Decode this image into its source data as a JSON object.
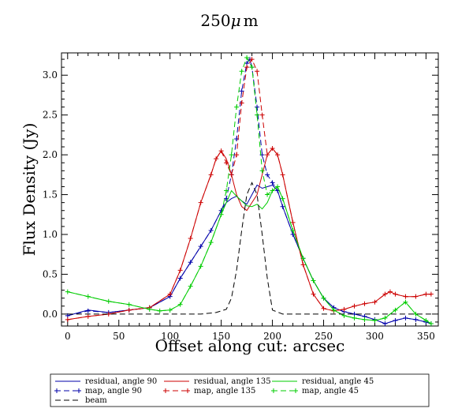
{
  "chart_data": {
    "type": "line",
    "title_number": "250",
    "title_mu": "μ",
    "title_unit": "m",
    "xlabel": "Offset along cut: arcsec",
    "ylabel": "Flux Density (Jy)",
    "xlim": [
      -6,
      362
    ],
    "ylim": [
      -0.15,
      3.28
    ],
    "xticks": [
      0,
      50,
      100,
      150,
      200,
      250,
      300,
      350
    ],
    "yticks": [
      0.0,
      0.5,
      1.0,
      1.5,
      2.0,
      2.5,
      3.0
    ],
    "ytick_labels": [
      "0.0",
      "0.5",
      "1.0",
      "1.5",
      "2.0",
      "2.5",
      "3.0"
    ],
    "legend_position": "bottom",
    "series": [
      {
        "name": "residual, angle 90",
        "style": "solid",
        "color": "#0000aa",
        "markers": false,
        "x": [
          0,
          20,
          40,
          60,
          80,
          100,
          110,
          120,
          130,
          140,
          150,
          155,
          160,
          165,
          170,
          175,
          180,
          185,
          190,
          195,
          200,
          205,
          210,
          220,
          230,
          240,
          250,
          260,
          270,
          280,
          290,
          300,
          310,
          320,
          330,
          340,
          350,
          355
        ],
        "y": [
          -0.02,
          0.05,
          0.02,
          0.05,
          0.08,
          0.22,
          0.45,
          0.65,
          0.85,
          1.05,
          1.3,
          1.4,
          1.45,
          1.48,
          1.42,
          1.38,
          1.5,
          1.62,
          1.58,
          1.6,
          1.62,
          1.55,
          1.35,
          1.0,
          0.7,
          0.42,
          0.2,
          0.08,
          0.03,
          0.0,
          -0.03,
          -0.07,
          -0.12,
          -0.08,
          -0.05,
          -0.07,
          -0.1,
          -0.12
        ]
      },
      {
        "name": "map, angle 90",
        "style": "dashed",
        "color": "#0000aa",
        "markers": true,
        "x": [
          0,
          20,
          40,
          60,
          80,
          100,
          110,
          120,
          130,
          140,
          150,
          155,
          160,
          165,
          170,
          175,
          178,
          180,
          185,
          190,
          195,
          200,
          205,
          210,
          220,
          230,
          240,
          250,
          260,
          270,
          280,
          290,
          300,
          310,
          320,
          330,
          340,
          350,
          355
        ],
        "y": [
          -0.02,
          0.04,
          0.02,
          0.05,
          0.08,
          0.22,
          0.45,
          0.65,
          0.85,
          1.05,
          1.3,
          1.45,
          1.75,
          2.2,
          2.8,
          3.15,
          3.2,
          3.1,
          2.6,
          2.0,
          1.75,
          1.65,
          1.55,
          1.35,
          1.0,
          0.7,
          0.42,
          0.2,
          0.08,
          0.03,
          0.0,
          -0.03,
          -0.07,
          -0.12,
          -0.08,
          -0.05,
          -0.07,
          -0.1,
          -0.12
        ]
      },
      {
        "name": "residual, angle 135",
        "style": "solid",
        "color": "#cc0000",
        "markers": false,
        "x": [
          0,
          20,
          40,
          60,
          80,
          100,
          110,
          120,
          130,
          140,
          145,
          150,
          155,
          160,
          165,
          170,
          175,
          180,
          185,
          190,
          195,
          200,
          205,
          210,
          220,
          230,
          240,
          250,
          260,
          270,
          280,
          290,
          300,
          310,
          315,
          320,
          330,
          340,
          350,
          355
        ],
        "y": [
          -0.07,
          -0.03,
          0.0,
          0.05,
          0.08,
          0.25,
          0.55,
          0.95,
          1.4,
          1.75,
          1.95,
          2.05,
          1.95,
          1.75,
          1.5,
          1.35,
          1.3,
          1.4,
          1.5,
          1.75,
          2.0,
          2.08,
          2.0,
          1.75,
          1.15,
          0.62,
          0.25,
          0.07,
          0.04,
          0.06,
          0.1,
          0.13,
          0.15,
          0.25,
          0.28,
          0.25,
          0.22,
          0.22,
          0.25,
          0.25
        ]
      },
      {
        "name": "map, angle 135",
        "style": "dashed",
        "color": "#cc0000",
        "markers": true,
        "x": [
          0,
          20,
          40,
          60,
          80,
          100,
          110,
          120,
          130,
          140,
          145,
          150,
          155,
          160,
          165,
          170,
          175,
          180,
          185,
          190,
          195,
          200,
          205,
          210,
          220,
          230,
          240,
          250,
          260,
          270,
          280,
          290,
          300,
          310,
          315,
          320,
          330,
          340,
          350,
          355
        ],
        "y": [
          -0.07,
          -0.03,
          0.0,
          0.05,
          0.08,
          0.25,
          0.55,
          0.95,
          1.4,
          1.75,
          1.95,
          2.05,
          1.9,
          1.75,
          2.0,
          2.65,
          3.1,
          3.2,
          3.05,
          2.5,
          2.0,
          2.08,
          2.0,
          1.75,
          1.15,
          0.62,
          0.25,
          0.07,
          0.04,
          0.06,
          0.1,
          0.13,
          0.15,
          0.25,
          0.28,
          0.25,
          0.22,
          0.22,
          0.25,
          0.25
        ]
      },
      {
        "name": "residual, angle 45",
        "style": "solid",
        "color": "#00cc00",
        "markers": false,
        "x": [
          0,
          20,
          40,
          60,
          80,
          90,
          100,
          110,
          120,
          130,
          140,
          150,
          155,
          160,
          165,
          170,
          175,
          180,
          185,
          190,
          195,
          200,
          205,
          210,
          220,
          230,
          240,
          250,
          260,
          270,
          280,
          290,
          300,
          310,
          320,
          330,
          340,
          350,
          355
        ],
        "y": [
          0.28,
          0.22,
          0.16,
          0.12,
          0.06,
          0.04,
          0.05,
          0.12,
          0.35,
          0.6,
          0.9,
          1.25,
          1.4,
          1.55,
          1.48,
          1.42,
          1.36,
          1.35,
          1.38,
          1.32,
          1.4,
          1.55,
          1.6,
          1.45,
          1.05,
          0.7,
          0.42,
          0.2,
          0.05,
          -0.02,
          -0.05,
          -0.07,
          -0.08,
          -0.05,
          0.05,
          0.15,
          0.0,
          -0.08,
          -0.12
        ]
      },
      {
        "name": "map, angle 45",
        "style": "dashed",
        "color": "#00cc00",
        "markers": true,
        "x": [
          0,
          20,
          40,
          60,
          80,
          90,
          100,
          110,
          120,
          130,
          140,
          150,
          155,
          160,
          165,
          170,
          175,
          180,
          185,
          190,
          195,
          200,
          205,
          210,
          220,
          230,
          240,
          250,
          260,
          270,
          280,
          290,
          300,
          310,
          320,
          330,
          340,
          350,
          355
        ],
        "y": [
          0.28,
          0.22,
          0.16,
          0.12,
          0.06,
          0.04,
          0.05,
          0.12,
          0.35,
          0.6,
          0.9,
          1.25,
          1.55,
          2.0,
          2.6,
          3.05,
          3.22,
          3.1,
          2.5,
          1.8,
          1.5,
          1.55,
          1.6,
          1.45,
          1.05,
          0.7,
          0.42,
          0.2,
          0.05,
          -0.02,
          -0.05,
          -0.07,
          -0.08,
          -0.05,
          0.05,
          0.15,
          0.0,
          -0.08,
          -0.12
        ]
      },
      {
        "name": "beam",
        "style": "dashed",
        "color": "#000000",
        "markers": false,
        "x": [
          0,
          50,
          100,
          130,
          145,
          155,
          160,
          165,
          170,
          175,
          180,
          185,
          190,
          195,
          200,
          210,
          250,
          300,
          355
        ],
        "y": [
          0.0,
          0.0,
          0.0,
          0.0,
          0.02,
          0.06,
          0.2,
          0.55,
          1.05,
          1.5,
          1.65,
          1.5,
          1.0,
          0.45,
          0.05,
          0.0,
          0.0,
          0.0,
          0.0
        ]
      }
    ]
  }
}
